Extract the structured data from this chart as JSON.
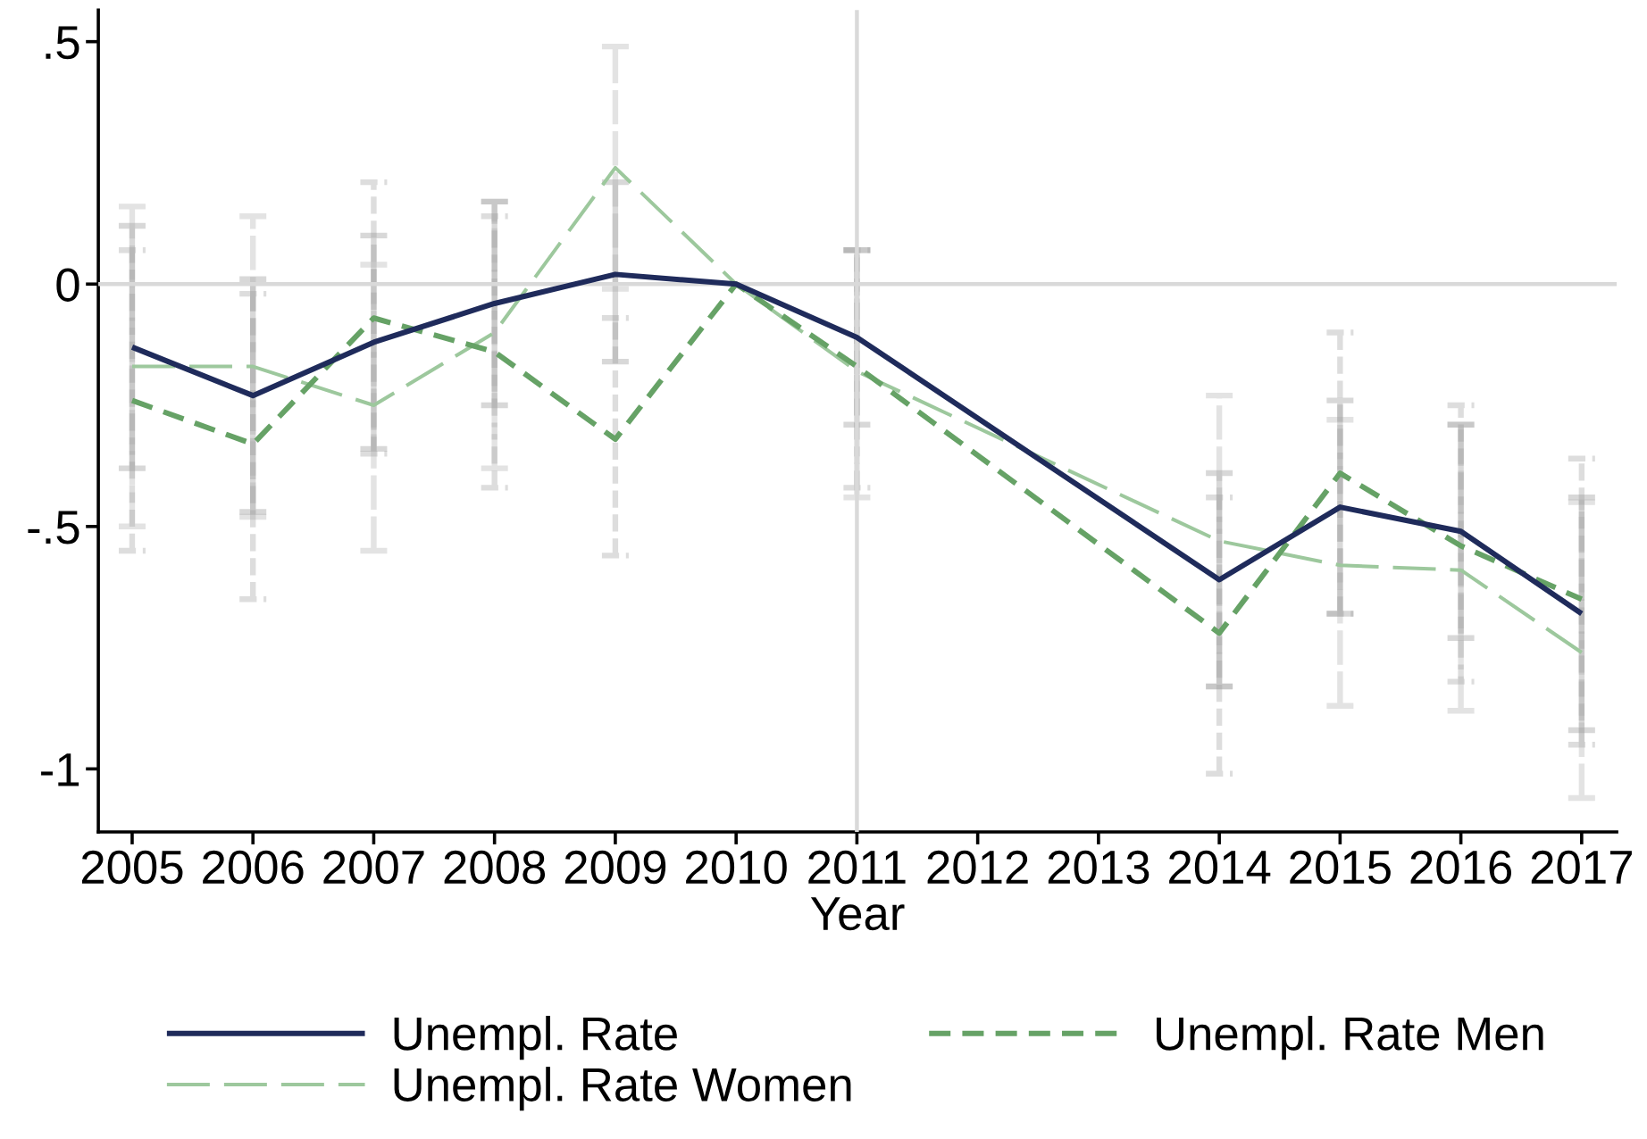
{
  "chart_data": {
    "type": "line",
    "xlabel": "Year",
    "x": [
      2005,
      2006,
      2007,
      2008,
      2009,
      2010,
      2011,
      2014,
      2015,
      2016,
      2017
    ],
    "xlim": [
      2004.72,
      2017.29
    ],
    "xticks": [
      2005,
      2006,
      2007,
      2008,
      2009,
      2010,
      2011,
      2012,
      2013,
      2014,
      2015,
      2016,
      2017
    ],
    "ylim": [
      -1.13,
      0.565
    ],
    "yticks": [
      {
        "value": 0.5,
        "label": ".5"
      },
      0,
      {
        "value": -0.5,
        "label": "-.5"
      },
      -1
    ],
    "series": [
      {
        "name": "Unempl. Rate",
        "color": "#1f2b5b",
        "line_style": "solid",
        "values": [
          -0.13,
          -0.23,
          -0.12,
          -0.04,
          0.02,
          0,
          -0.11,
          -0.61,
          -0.46,
          -0.51,
          -0.68
        ],
        "errors": [
          [
            -0.38,
            0.12
          ],
          [
            -0.47,
            0.01
          ],
          [
            -0.34,
            0.1
          ],
          [
            -0.25,
            0.17
          ],
          [
            -0.16,
            0.21
          ],
          null,
          [
            -0.29,
            0.07
          ],
          [
            -0.83,
            -0.39
          ],
          [
            -0.68,
            -0.24
          ],
          [
            -0.73,
            -0.29
          ],
          [
            -0.92,
            -0.44
          ]
        ]
      },
      {
        "name": "Unempl. Rate Men",
        "color": "#66a266",
        "line_style": "dashed",
        "values": [
          -0.24,
          -0.33,
          -0.07,
          -0.14,
          -0.32,
          0,
          -0.17,
          -0.72,
          -0.39,
          -0.54,
          -0.65
        ],
        "errors": [
          [
            -0.55,
            0.07
          ],
          [
            -0.65,
            -0.02
          ],
          [
            -0.35,
            0.21
          ],
          [
            -0.42,
            0.14
          ],
          [
            -0.56,
            -0.07
          ],
          null,
          [
            -0.42,
            0.07
          ],
          [
            -1.01,
            -0.44
          ],
          [
            -0.68,
            -0.1
          ],
          [
            -0.82,
            -0.25
          ],
          [
            -0.95,
            -0.36
          ]
        ]
      },
      {
        "name": "Unempl. Rate Women",
        "color": "#9dc89d",
        "line_style": "dashed",
        "values": [
          -0.17,
          -0.17,
          -0.25,
          -0.1,
          0.24,
          0,
          -0.18,
          -0.53,
          -0.58,
          -0.59,
          -0.76
        ],
        "errors": [
          [
            -0.5,
            0.16
          ],
          [
            -0.48,
            0.14
          ],
          [
            -0.55,
            0.04
          ],
          [
            -0.38,
            0.17
          ],
          [
            -0.01,
            0.49
          ],
          null,
          [
            -0.44,
            0.07
          ],
          [
            -0.83,
            -0.23
          ],
          [
            -0.87,
            -0.28
          ],
          [
            -0.88,
            -0.29
          ],
          [
            -1.06,
            -0.45
          ]
        ]
      }
    ],
    "ref_lines": [
      {
        "axis": "y",
        "value": 0,
        "color": "#d9d9d9"
      },
      {
        "axis": "x",
        "value": 2011,
        "color": "#d9d9d9"
      }
    ],
    "legend": "bottom",
    "grid": false,
    "marker": "none"
  }
}
